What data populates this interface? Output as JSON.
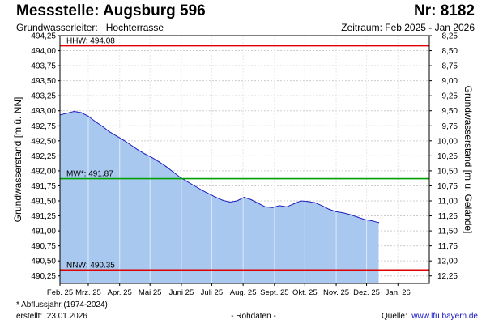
{
  "header": {
    "title": "Messstelle: Augsburg 596",
    "number": "Nr: 8182",
    "aquifer_label": "Grundwasserleiter:",
    "aquifer_value": "Hochterrasse",
    "period": "Zeitraum: Feb 2025 - Jan 2026"
  },
  "footer": {
    "note": "* Abflussjahr (1974-2024)",
    "created_label": "erstellt:",
    "created_date": "23.01.2026",
    "raw": "- Rohdaten -",
    "source_label": "Quelle:",
    "source_link": "www.lfu.bayern.de"
  },
  "colors": {
    "area_fill": "#a8c8f0",
    "series_line": "#2020c0",
    "hhw_line": "#e00000",
    "nnw_line": "#e00000",
    "mw_line": "#00a000",
    "grid": "#cccccc"
  },
  "chart_data": {
    "type": "area",
    "ylabel": "Grundwasserstand [m ü. NN]",
    "ylabel_right": "Grundwasserstand [m u. Gelände]",
    "ylim": [
      490.125,
      494.25
    ],
    "y_ticks": [
      "490,25",
      "490,50",
      "490,75",
      "491,00",
      "491,25",
      "491,50",
      "491,75",
      "492,00",
      "492,25",
      "492,50",
      "492,75",
      "493,00",
      "493,25",
      "493,50",
      "493,75",
      "494,00",
      "494,25"
    ],
    "y_tick_values": [
      490.25,
      490.5,
      490.75,
      491.0,
      491.25,
      491.5,
      491.75,
      492.0,
      492.25,
      492.5,
      492.75,
      493.0,
      493.25,
      493.5,
      493.75,
      494.0,
      494.25
    ],
    "y2_ticks": [
      "8,25",
      "8,50",
      "8,75",
      "9,00",
      "9,25",
      "9,50",
      "9,75",
      "10,00",
      "10,25",
      "10,50",
      "10,75",
      "11,00",
      "11,25",
      "11,50",
      "11,75",
      "12,00",
      "12,25"
    ],
    "y2_tick_values": [
      8.25,
      8.5,
      8.75,
      9.0,
      9.25,
      9.5,
      9.75,
      10.0,
      10.25,
      10.5,
      10.75,
      11.0,
      11.25,
      11.5,
      11.75,
      12.0,
      12.25
    ],
    "x_range": [
      "2025-02-01",
      "2026-02-01"
    ],
    "x_ticks": [
      {
        "date": "2025-02-01",
        "label": "Feb. 25"
      },
      {
        "date": "2025-03-01",
        "label": "Mrz. 25"
      },
      {
        "date": "2025-04-01",
        "label": "Apr. 25"
      },
      {
        "date": "2025-05-01",
        "label": "Mai 25"
      },
      {
        "date": "2025-06-01",
        "label": "Juni 25"
      },
      {
        "date": "2025-07-01",
        "label": "Juli 25"
      },
      {
        "date": "2025-08-01",
        "label": "Aug. 25"
      },
      {
        "date": "2025-09-01",
        "label": "Sept. 25"
      },
      {
        "date": "2025-10-01",
        "label": "Okt. 25"
      },
      {
        "date": "2025-11-01",
        "label": "Nov. 25"
      },
      {
        "date": "2025-12-01",
        "label": "Dez. 25"
      },
      {
        "date": "2026-01-01",
        "label": "Jan. 26"
      }
    ],
    "reference_lines": [
      {
        "name": "HHW",
        "label": "HHW: 494.08",
        "value": 494.08
      },
      {
        "name": "MW",
        "label": "MW*: 491.87",
        "value": 491.87
      },
      {
        "name": "NNW",
        "label": "NNW: 490.35",
        "value": 490.35
      }
    ],
    "series": [
      {
        "x": [
          "2025-02-01",
          "2025-02-08",
          "2025-02-15",
          "2025-02-22",
          "2025-03-01",
          "2025-03-08",
          "2025-03-15",
          "2025-03-22",
          "2025-03-29",
          "2025-04-05",
          "2025-04-12",
          "2025-04-19",
          "2025-04-26",
          "2025-05-03",
          "2025-05-10",
          "2025-05-17",
          "2025-05-24",
          "2025-05-31",
          "2025-06-07",
          "2025-06-14",
          "2025-06-21",
          "2025-06-28",
          "2025-07-05",
          "2025-07-12",
          "2025-07-19",
          "2025-07-26",
          "2025-08-02",
          "2025-08-09",
          "2025-08-16",
          "2025-08-23",
          "2025-08-30",
          "2025-09-06",
          "2025-09-13",
          "2025-09-20",
          "2025-09-27",
          "2025-10-04",
          "2025-10-11",
          "2025-10-18",
          "2025-10-25",
          "2025-11-01",
          "2025-11-08",
          "2025-11-15",
          "2025-11-22",
          "2025-11-29",
          "2025-12-06",
          "2025-12-13"
        ],
        "y": [
          492.93,
          492.96,
          492.99,
          492.97,
          492.91,
          492.82,
          492.74,
          492.65,
          492.58,
          492.51,
          492.43,
          492.35,
          492.28,
          492.22,
          492.15,
          492.07,
          491.98,
          491.89,
          491.82,
          491.75,
          491.68,
          491.62,
          491.56,
          491.51,
          491.48,
          491.5,
          491.56,
          491.52,
          491.46,
          491.4,
          491.39,
          491.42,
          491.4,
          491.45,
          491.5,
          491.49,
          491.47,
          491.42,
          491.36,
          491.32,
          491.3,
          491.27,
          491.23,
          491.19,
          491.17,
          491.14
        ]
      }
    ]
  }
}
